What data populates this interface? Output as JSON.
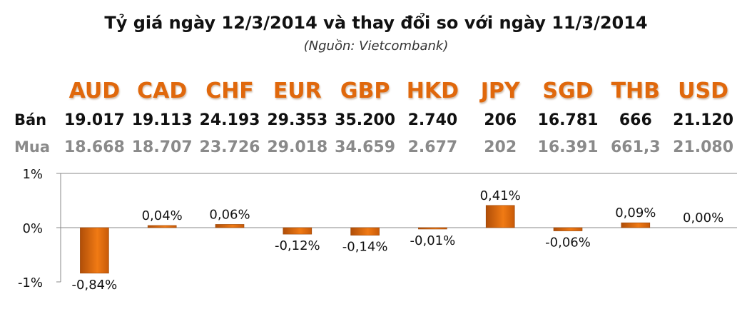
{
  "title": "Tỷ giá ngày 12/3/2014 và thay đổi so với ngày 11/3/2014",
  "subtitle": "(Nguồn: Vietcombank)",
  "row_labels": {
    "sell": "Bán",
    "buy": "Mua"
  },
  "currencies": [
    "AUD",
    "CAD",
    "CHF",
    "EUR",
    "GBP",
    "HKD",
    "JPY",
    "SGD",
    "THB",
    "USD"
  ],
  "sell": [
    "19.017",
    "19.113",
    "24.193",
    "29.353",
    "35.200",
    "2.740",
    "206",
    "16.781",
    "666",
    "21.120"
  ],
  "buy": [
    "18.668",
    "18.707",
    "23.726",
    "29.018",
    "34.659",
    "2.677",
    "202",
    "16.391",
    "661,3",
    "21.080"
  ],
  "colors": {
    "accent": "#E0680C",
    "bar": "#E46C0A",
    "bar_dark": "#B04E08",
    "buy_text": "#8a8a8a"
  },
  "chart_data": {
    "type": "bar",
    "categories": [
      "AUD",
      "CAD",
      "CHF",
      "EUR",
      "GBP",
      "HKD",
      "JPY",
      "SGD",
      "THB",
      "USD"
    ],
    "values": [
      -0.84,
      0.04,
      0.06,
      -0.12,
      -0.14,
      -0.01,
      0.41,
      -0.06,
      0.09,
      0.0
    ],
    "data_labels": [
      "-0,84%",
      "0,04%",
      "0,06%",
      "-0,12%",
      "-0,14%",
      "-0,01%",
      "0,41%",
      "-0,06%",
      "0,09%",
      "0,00%"
    ],
    "ylim": [
      -1,
      1
    ],
    "yticks": [
      "1%",
      "0%",
      "-1%"
    ],
    "ytick_values": [
      1,
      0,
      -1
    ],
    "grid": false
  }
}
